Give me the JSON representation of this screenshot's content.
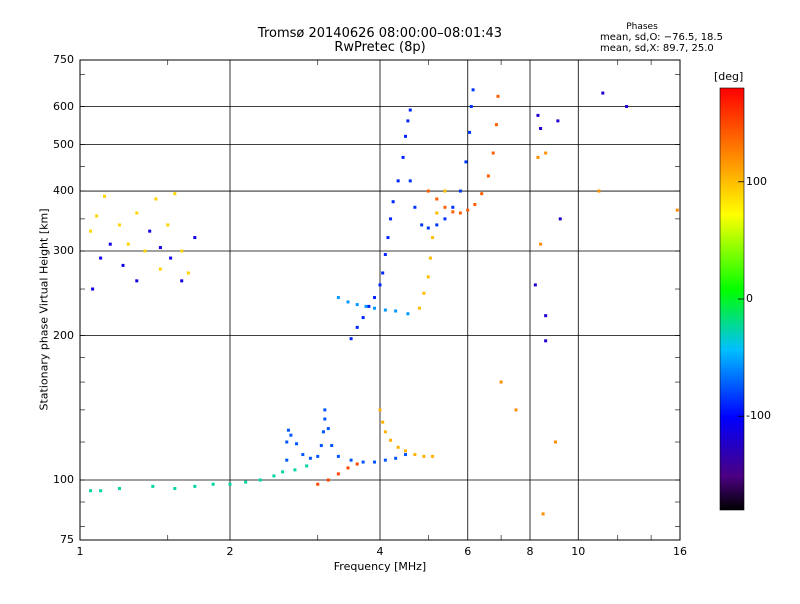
{
  "chart_data": {
    "type": "scatter",
    "title": "Tromsø 20140626 08:00:00–08:01:43",
    "subtitle": "RwPretec (8p)",
    "xlabel": "Frequency [MHz]",
    "ylabel": "Stationary phase Virtual Height [km]",
    "x_scale": "log2",
    "y_scale": "log",
    "xlim": [
      1,
      16
    ],
    "ylim": [
      75,
      750
    ],
    "x_ticks": [
      1,
      2,
      4,
      6,
      8,
      10,
      16
    ],
    "x_tick_labels": [
      "1",
      "2",
      "4",
      "6",
      "8",
      "10",
      "16"
    ],
    "y_ticks": [
      75,
      100,
      200,
      300,
      400,
      500,
      600,
      750
    ],
    "y_tick_labels": [
      "75",
      "100",
      "200",
      "300",
      "400",
      "500",
      "600",
      "750"
    ],
    "grid": true,
    "colorbar": {
      "unit": "[deg]",
      "range": [
        -180,
        180
      ],
      "ticks": [
        100,
        0,
        -100
      ],
      "tick_labels": [
        "100",
        "0",
        "-100"
      ]
    },
    "phase_stats": {
      "title": "Phases",
      "mean_o": "mean, sd,O: −76.5, 18.5",
      "mean_x": "mean, sd,X:  89.7, 25.0"
    },
    "series": [
      {
        "phase": -25,
        "points": [
          [
            1.05,
            95
          ],
          [
            1.1,
            95
          ],
          [
            1.2,
            96
          ],
          [
            1.4,
            97
          ],
          [
            1.55,
            96
          ],
          [
            1.7,
            97
          ],
          [
            1.85,
            98
          ],
          [
            2.0,
            98
          ],
          [
            2.15,
            99
          ],
          [
            2.3,
            100
          ],
          [
            2.45,
            102
          ],
          [
            2.55,
            104
          ],
          [
            2.7,
            105
          ],
          [
            2.85,
            107
          ]
        ]
      },
      {
        "phase": -75,
        "points": [
          [
            2.6,
            110
          ],
          [
            2.6,
            120
          ],
          [
            2.62,
            127
          ],
          [
            2.65,
            124
          ],
          [
            2.72,
            119
          ],
          [
            2.8,
            113
          ],
          [
            2.9,
            111
          ],
          [
            3.0,
            112
          ],
          [
            3.05,
            118
          ],
          [
            3.08,
            126
          ],
          [
            3.1,
            134
          ],
          [
            3.1,
            140
          ],
          [
            3.15,
            128
          ],
          [
            3.2,
            118
          ],
          [
            3.3,
            112
          ],
          [
            3.5,
            110
          ],
          [
            3.7,
            109
          ],
          [
            3.9,
            109
          ],
          [
            4.1,
            110
          ],
          [
            4.3,
            111
          ],
          [
            4.5,
            113
          ]
        ]
      },
      {
        "phase": 150,
        "points": [
          [
            3.0,
            98
          ],
          [
            3.15,
            100
          ],
          [
            3.3,
            103
          ],
          [
            3.45,
            106
          ],
          [
            3.6,
            108
          ]
        ]
      },
      {
        "phase": 105,
        "points": [
          [
            4.0,
            140
          ],
          [
            4.05,
            132
          ],
          [
            4.1,
            126
          ],
          [
            4.2,
            121
          ],
          [
            4.35,
            117
          ],
          [
            4.5,
            115
          ],
          [
            4.7,
            113
          ],
          [
            4.9,
            112
          ],
          [
            5.1,
            112
          ]
        ]
      },
      {
        "phase": -90,
        "points": [
          [
            3.5,
            197
          ],
          [
            3.6,
            208
          ],
          [
            3.7,
            218
          ],
          [
            3.8,
            230
          ],
          [
            3.9,
            240
          ],
          [
            4.0,
            255
          ],
          [
            4.05,
            270
          ],
          [
            4.1,
            295
          ],
          [
            4.15,
            320
          ],
          [
            4.2,
            350
          ],
          [
            4.25,
            380
          ],
          [
            4.35,
            420
          ],
          [
            4.45,
            470
          ],
          [
            4.5,
            520
          ],
          [
            4.55,
            560
          ],
          [
            4.6,
            590
          ]
        ]
      },
      {
        "phase": -85,
        "points": [
          [
            4.6,
            420
          ],
          [
            4.7,
            370
          ],
          [
            4.85,
            340
          ],
          [
            5.0,
            335
          ],
          [
            5.2,
            340
          ],
          [
            5.4,
            350
          ],
          [
            5.6,
            370
          ],
          [
            5.8,
            400
          ],
          [
            5.95,
            460
          ],
          [
            6.05,
            530
          ],
          [
            6.1,
            600
          ],
          [
            6.15,
            650
          ]
        ]
      },
      {
        "phase": -55,
        "points": [
          [
            3.3,
            240
          ],
          [
            3.45,
            235
          ],
          [
            3.6,
            232
          ],
          [
            3.75,
            230
          ],
          [
            3.9,
            228
          ],
          [
            4.1,
            226
          ],
          [
            4.3,
            225
          ],
          [
            4.55,
            222
          ]
        ]
      },
      {
        "phase": 140,
        "points": [
          [
            5.0,
            400
          ],
          [
            5.2,
            385
          ],
          [
            5.4,
            370
          ],
          [
            5.6,
            362
          ],
          [
            5.8,
            360
          ],
          [
            6.0,
            365
          ],
          [
            6.2,
            375
          ],
          [
            6.4,
            395
          ],
          [
            6.6,
            430
          ],
          [
            6.75,
            480
          ],
          [
            6.85,
            550
          ],
          [
            6.9,
            630
          ]
        ]
      },
      {
        "phase": 100,
        "points": [
          [
            4.8,
            228
          ],
          [
            4.9,
            245
          ],
          [
            5.0,
            265
          ],
          [
            5.05,
            290
          ],
          [
            5.1,
            320
          ],
          [
            5.2,
            360
          ],
          [
            5.4,
            400
          ]
        ]
      },
      {
        "phase": 90,
        "points": [
          [
            1.05,
            330
          ],
          [
            1.08,
            355
          ],
          [
            1.12,
            390
          ],
          [
            1.2,
            340
          ],
          [
            1.25,
            310
          ],
          [
            1.3,
            360
          ],
          [
            1.35,
            300
          ],
          [
            1.42,
            385
          ],
          [
            1.45,
            275
          ],
          [
            1.5,
            340
          ],
          [
            1.55,
            395
          ],
          [
            1.6,
            300
          ],
          [
            1.65,
            270
          ]
        ]
      },
      {
        "phase": -110,
        "points": [
          [
            1.06,
            250
          ],
          [
            1.1,
            290
          ],
          [
            1.15,
            310
          ],
          [
            1.22,
            280
          ],
          [
            1.3,
            260
          ],
          [
            1.38,
            330
          ],
          [
            1.45,
            305
          ],
          [
            1.52,
            290
          ],
          [
            1.6,
            260
          ],
          [
            1.7,
            320
          ]
        ]
      },
      {
        "phase": -120,
        "points": [
          [
            8.3,
            575
          ],
          [
            8.4,
            540
          ],
          [
            8.6,
            220
          ],
          [
            8.6,
            195
          ],
          [
            8.2,
            255
          ],
          [
            9.1,
            560
          ],
          [
            9.2,
            350
          ],
          [
            11.2,
            640
          ],
          [
            12.5,
            600
          ]
        ]
      },
      {
        "phase": 120,
        "points": [
          [
            8.3,
            470
          ],
          [
            8.4,
            310
          ],
          [
            8.6,
            480
          ],
          [
            7.0,
            160
          ],
          [
            7.5,
            140
          ],
          [
            8.5,
            85
          ],
          [
            9.0,
            120
          ],
          [
            11.0,
            400
          ],
          [
            15.8,
            365
          ]
        ]
      }
    ]
  }
}
